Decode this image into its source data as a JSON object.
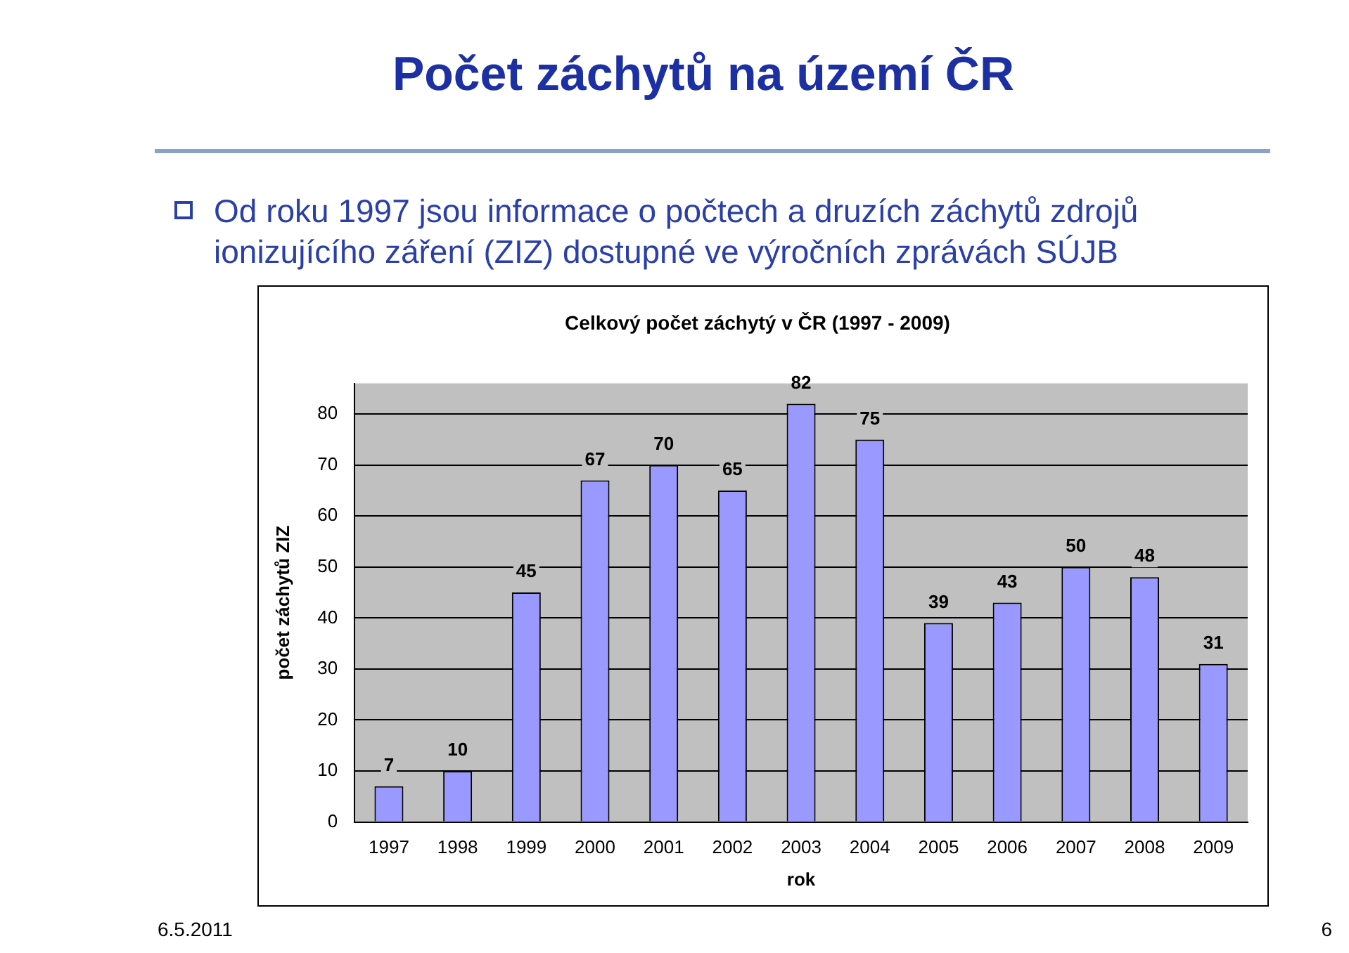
{
  "chart_data": {
    "type": "bar",
    "title": "Celkový počet záchytý v ČR (1997 - 2009)",
    "subtitle": "Počet záchytů na území ČR",
    "annotations": [
      "Od roku 1997 jsou informace o počtech a druzích záchytů zdrojů ionizujícího záření (ZIZ) dostupné ve výročních zprávách SÚJB",
      "6.5.2011",
      "6"
    ],
    "xlabel": "rok",
    "ylabel": "počet záchytů ZIZ",
    "categories": [
      "1997",
      "1998",
      "1999",
      "2000",
      "2001",
      "2002",
      "2003",
      "2004",
      "2005",
      "2006",
      "2007",
      "2008",
      "2009"
    ],
    "values": [
      7,
      10,
      45,
      67,
      70,
      65,
      82,
      75,
      39,
      43,
      50,
      48,
      31
    ],
    "color": "#9999ff",
    "ylim": [
      0,
      86
    ],
    "yticks": [
      0,
      10,
      20,
      30,
      40,
      50,
      60,
      70,
      80
    ],
    "grid": "y",
    "data_labels": true,
    "legend": false
  }
}
